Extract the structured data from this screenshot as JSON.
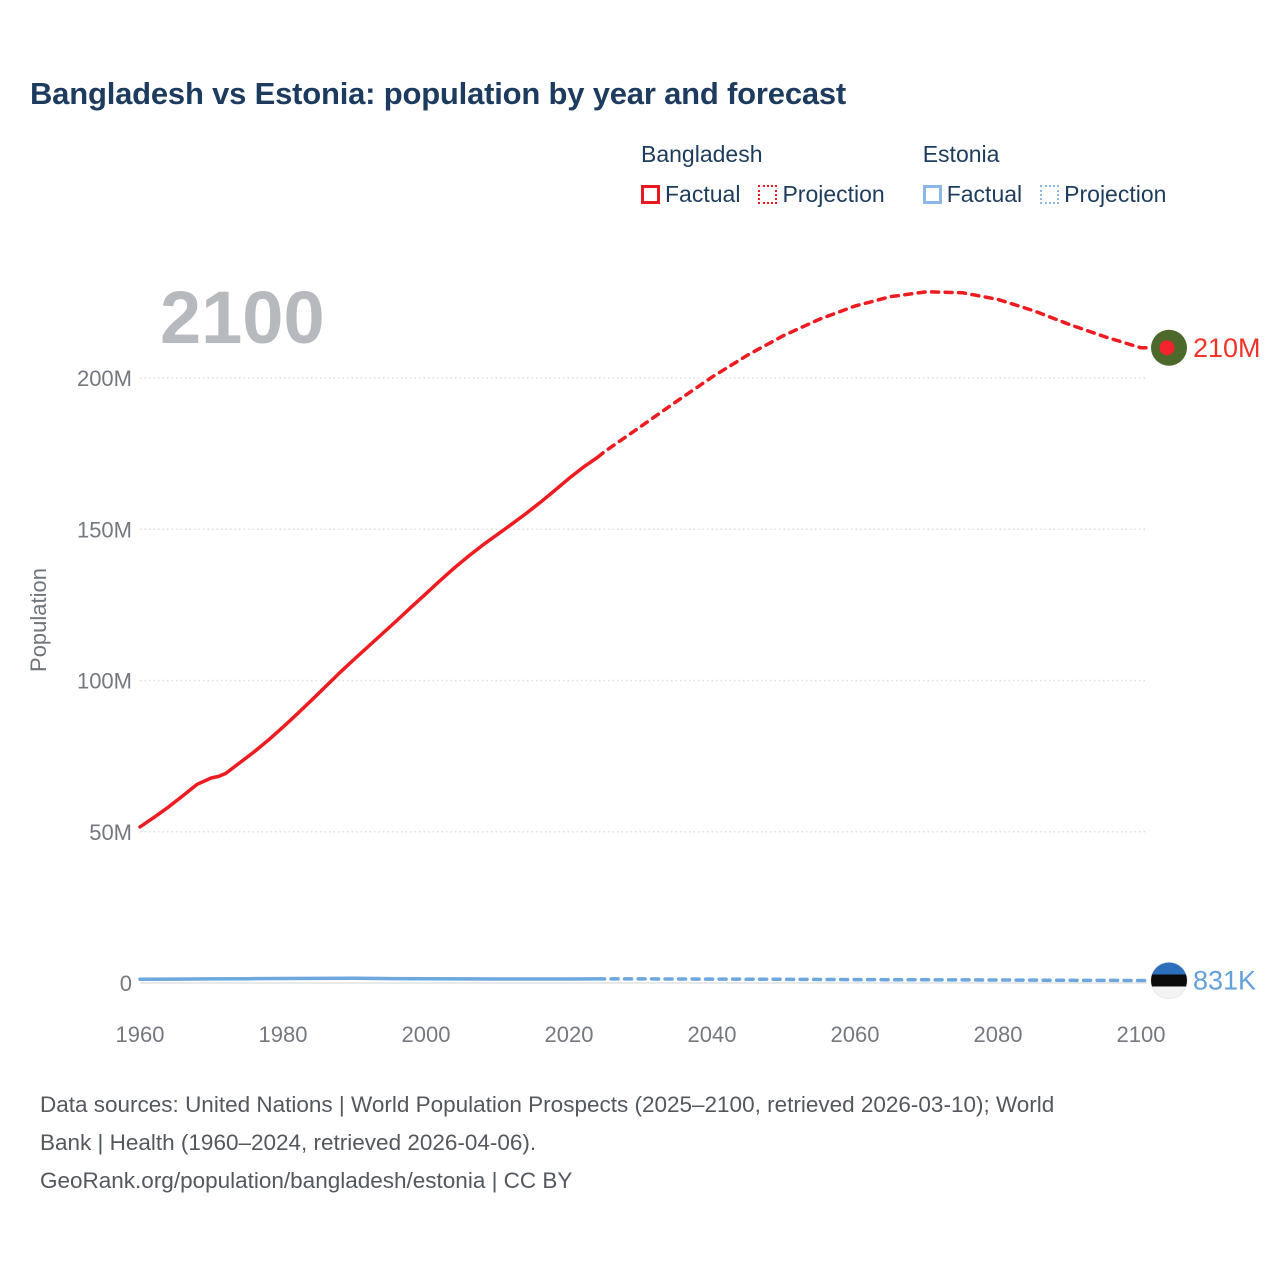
{
  "title": "Bangladesh vs Estonia: population by year and forecast",
  "watermark": "2100",
  "legend": {
    "groups": [
      {
        "country": "Bangladesh",
        "color": "#e8191e",
        "factual_label": "Factual",
        "projection_label": "Projection"
      },
      {
        "country": "Estonia",
        "color": "#8cb7e6",
        "factual_label": "Factual",
        "projection_label": "Projection"
      }
    ]
  },
  "chart_data": {
    "type": "line",
    "title": "Bangladesh vs Estonia: population by year and forecast",
    "xlabel": "",
    "ylabel": "Population",
    "xlim": [
      1960,
      2100
    ],
    "ylim": [
      0,
      245
    ],
    "grid": true,
    "x_ticks": [
      "1960",
      "1980",
      "2000",
      "2020",
      "2040",
      "2060",
      "2080",
      "2100"
    ],
    "y_ticks": [
      {
        "value": 0,
        "label": "0"
      },
      {
        "value": 50,
        "label": "50M"
      },
      {
        "value": 100,
        "label": "100M"
      },
      {
        "value": 150,
        "label": "150M"
      },
      {
        "value": 200,
        "label": "200M"
      }
    ],
    "unit": "millions of people",
    "series": [
      {
        "name": "Bangladesh factual",
        "style": "solid",
        "color": "#ee1c21",
        "points": [
          [
            1960,
            51.6
          ],
          [
            1962,
            54.8
          ],
          [
            1964,
            58.2
          ],
          [
            1966,
            61.9
          ],
          [
            1968,
            65.7
          ],
          [
            1970,
            67.8
          ],
          [
            1971,
            68.3
          ],
          [
            1972,
            69.3
          ],
          [
            1974,
            72.9
          ],
          [
            1976,
            76.5
          ],
          [
            1978,
            80.4
          ],
          [
            1980,
            84.6
          ],
          [
            1982,
            89.0
          ],
          [
            1984,
            93.5
          ],
          [
            1986,
            98.1
          ],
          [
            1988,
            102.7
          ],
          [
            1990,
            107.1
          ],
          [
            1992,
            111.4
          ],
          [
            1994,
            115.7
          ],
          [
            1996,
            120.0
          ],
          [
            1998,
            124.4
          ],
          [
            2000,
            128.7
          ],
          [
            2002,
            133.1
          ],
          [
            2004,
            137.3
          ],
          [
            2006,
            141.2
          ],
          [
            2008,
            144.9
          ],
          [
            2010,
            148.3
          ],
          [
            2012,
            151.7
          ],
          [
            2014,
            155.2
          ],
          [
            2016,
            158.9
          ],
          [
            2018,
            162.8
          ],
          [
            2020,
            166.8
          ],
          [
            2022,
            170.5
          ],
          [
            2024,
            173.8
          ]
        ]
      },
      {
        "name": "Bangladesh projection",
        "style": "dashed",
        "color": "#ee1c21",
        "points": [
          [
            2024,
            173.8
          ],
          [
            2025,
            175.7
          ],
          [
            2030,
            183.9
          ],
          [
            2035,
            192.2
          ],
          [
            2040,
            200.3
          ],
          [
            2045,
            207.6
          ],
          [
            2050,
            214.0
          ],
          [
            2055,
            219.4
          ],
          [
            2060,
            223.8
          ],
          [
            2065,
            226.9
          ],
          [
            2070,
            228.5
          ],
          [
            2075,
            228.2
          ],
          [
            2080,
            226.0
          ],
          [
            2085,
            222.2
          ],
          [
            2090,
            217.7
          ],
          [
            2095,
            213.6
          ],
          [
            2100,
            210.0
          ]
        ]
      },
      {
        "name": "Estonia factual",
        "style": "solid",
        "color": "#6da7de",
        "points": [
          [
            1960,
            1.21
          ],
          [
            1965,
            1.29
          ],
          [
            1970,
            1.36
          ],
          [
            1975,
            1.42
          ],
          [
            1980,
            1.48
          ],
          [
            1985,
            1.52
          ],
          [
            1990,
            1.57
          ],
          [
            1995,
            1.44
          ],
          [
            2000,
            1.4
          ],
          [
            2005,
            1.36
          ],
          [
            2010,
            1.33
          ],
          [
            2015,
            1.31
          ],
          [
            2020,
            1.33
          ],
          [
            2024,
            1.37
          ]
        ]
      },
      {
        "name": "Estonia projection",
        "style": "dashed",
        "color": "#6da7de",
        "points": [
          [
            2024,
            1.37
          ],
          [
            2025,
            1.36
          ],
          [
            2030,
            1.34
          ],
          [
            2040,
            1.28
          ],
          [
            2050,
            1.21
          ],
          [
            2060,
            1.14
          ],
          [
            2070,
            1.06
          ],
          [
            2080,
            0.98
          ],
          [
            2090,
            0.9
          ],
          [
            2100,
            0.831
          ]
        ]
      }
    ],
    "end_markers": [
      {
        "flag": "bangladesh",
        "label": "210M",
        "year": 2100,
        "value": 210.0,
        "label_color": "#f2332a"
      },
      {
        "flag": "estonia",
        "label": "831K",
        "year": 2100,
        "value": 0.831,
        "label_color": "#63a0da"
      }
    ],
    "flag_colors": {
      "bangladesh_green": "#4c682b",
      "bangladesh_red": "#f5232e",
      "estonia_blue": "#2e6fbc",
      "estonia_black": "#0b0b0b",
      "estonia_white": "#f3f3f3"
    }
  },
  "footer": {
    "line1": "Data sources: United Nations | World Population Prospects (2025–2100, retrieved 2026-03-10); World",
    "line2": "Bank | Health (1960–2024, retrieved 2026-04-06).",
    "line3": "GeoRank.org/population/bangladesh/estonia | CC BY"
  }
}
